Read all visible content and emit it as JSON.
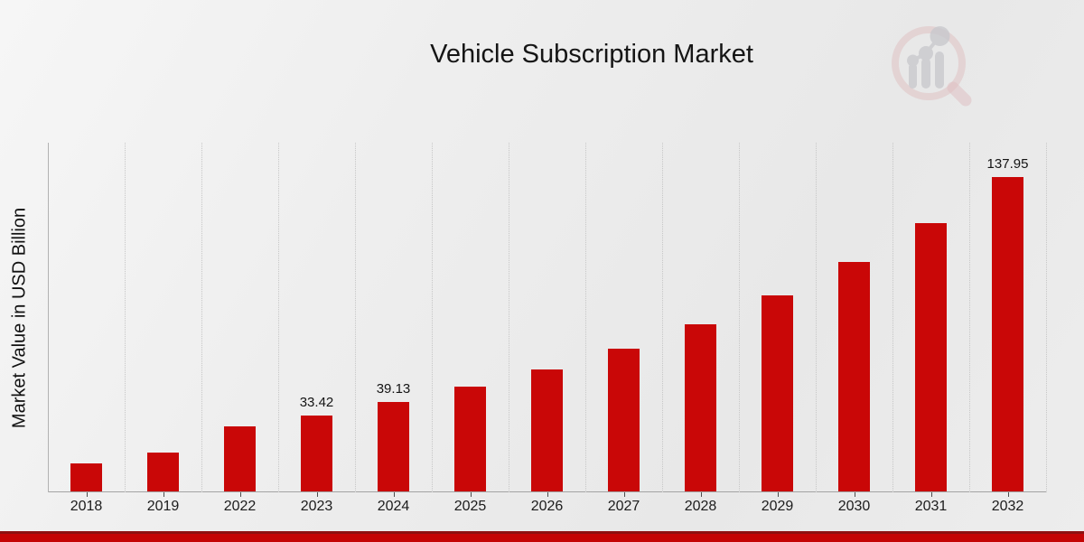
{
  "title": "Vehicle Subscription Market",
  "chart_data": {
    "type": "bar",
    "title": "Vehicle Subscription Market",
    "xlabel": "",
    "ylabel": "Market Value in USD Billion",
    "categories": [
      "2018",
      "2019",
      "2022",
      "2023",
      "2024",
      "2025",
      "2026",
      "2027",
      "2028",
      "2029",
      "2030",
      "2031",
      "2032"
    ],
    "values": [
      12.4,
      17.2,
      28.55,
      33.42,
      39.13,
      45.81,
      53.63,
      62.78,
      73.5,
      86.04,
      100.73,
      117.92,
      137.95
    ],
    "data_labels": [
      "",
      "",
      "",
      "33.42",
      "39.13",
      "",
      "",
      "",
      "",
      "",
      "",
      "",
      "137.95"
    ],
    "ylim": [
      0,
      153
    ],
    "grid": "vertical-dotted",
    "legend_position": "none",
    "bar_color": "#C90707",
    "axis_color": "#a3a3a3",
    "footer_bar_color": "#C40404"
  },
  "watermark": {
    "icon": "magnifier-bar-chart-logo",
    "ring_color": "#ddb9bc",
    "bars_color": "#c3c3c9"
  }
}
